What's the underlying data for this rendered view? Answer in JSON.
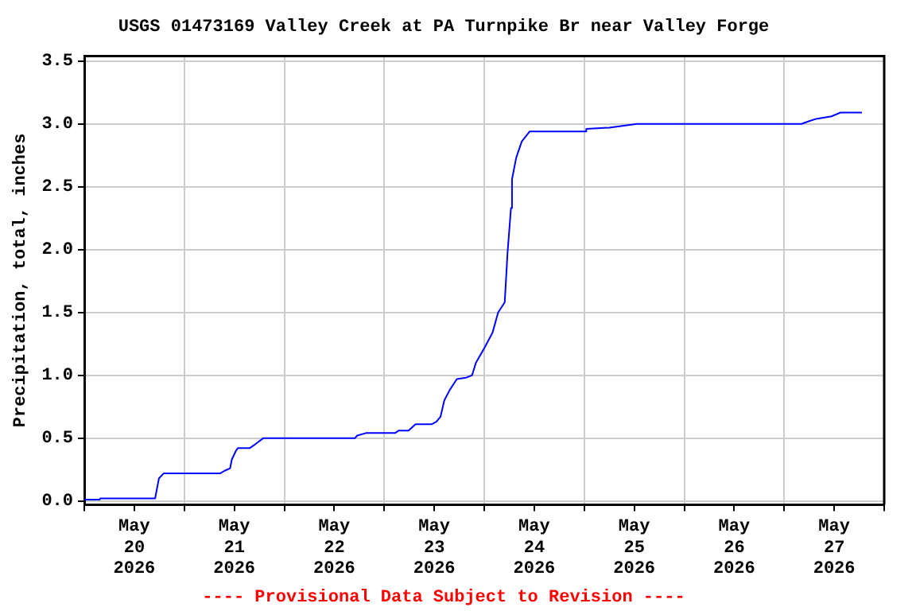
{
  "chart_data": {
    "type": "line",
    "title": "USGS 01473169 Valley Creek at PA Turnpike Br near Valley Forge",
    "ylabel": "Precipitation, total, inches",
    "annotations": [
      "---- Provisional Data Subject to Revision ----"
    ],
    "x": [
      "2026-05-20T00:00",
      "2026-05-20T03:40",
      "2026-05-20T03:50",
      "2026-05-20T17:00",
      "2026-05-20T17:55",
      "2026-05-20T19:05",
      "2026-05-21T08:40",
      "2026-05-21T09:40",
      "2026-05-21T11:00",
      "2026-05-21T11:25",
      "2026-05-21T12:25",
      "2026-05-21T12:50",
      "2026-05-21T15:40",
      "2026-05-21T17:00",
      "2026-05-21T19:00",
      "2026-05-22T17:00",
      "2026-05-22T17:30",
      "2026-05-22T19:35",
      "2026-05-23T02:35",
      "2026-05-23T03:30",
      "2026-05-23T05:50",
      "2026-05-23T07:30",
      "2026-05-23T11:20",
      "2026-05-23T12:30",
      "2026-05-23T13:30",
      "2026-05-23T14:25",
      "2026-05-23T15:40",
      "2026-05-23T17:25",
      "2026-05-23T19:35",
      "2026-05-23T21:05",
      "2026-05-23T22:00",
      "2026-05-24T00:05",
      "2026-05-24T02:00",
      "2026-05-24T03:20",
      "2026-05-24T04:55",
      "2026-05-24T05:35",
      "2026-05-24T06:25",
      "2026-05-24T06:40",
      "2026-05-24T07:40",
      "2026-05-24T09:00",
      "2026-05-24T10:55",
      "2026-05-25T00:20",
      "2026-05-25T00:30",
      "2026-05-25T06:00",
      "2026-05-25T12:40",
      "2026-05-27T04:10",
      "2026-05-27T05:50",
      "2026-05-27T07:40",
      "2026-05-27T11:20",
      "2026-05-27T13:30",
      "2026-05-27T18:40"
    ],
    "series": [
      {
        "color": "#0000ff",
        "values": [
          0.01,
          0.01,
          0.02,
          0.02,
          0.18,
          0.22,
          0.22,
          0.24,
          0.26,
          0.33,
          0.4,
          0.42,
          0.42,
          0.45,
          0.5,
          0.5,
          0.52,
          0.54,
          0.54,
          0.56,
          0.56,
          0.61,
          0.61,
          0.63,
          0.67,
          0.8,
          0.88,
          0.97,
          0.98,
          1.0,
          1.1,
          1.22,
          1.34,
          1.5,
          1.58,
          1.97,
          2.33,
          2.56,
          2.73,
          2.86,
          2.94,
          2.94,
          2.96,
          2.97,
          3.0,
          3.0,
          3.02,
          3.04,
          3.06,
          3.09,
          3.09
        ]
      }
    ],
    "xlim": [
      "2026-05-20T00:00",
      "2026-05-28T00:00"
    ],
    "xticks": [
      {
        "value": "2026-05-20T00:00",
        "label": null
      },
      {
        "value": "2026-05-20T12:00",
        "label": "May\n20\n2026"
      },
      {
        "value": "2026-05-21T00:00",
        "label": null
      },
      {
        "value": "2026-05-21T12:00",
        "label": "May\n21\n2026"
      },
      {
        "value": "2026-05-22T00:00",
        "label": null
      },
      {
        "value": "2026-05-22T12:00",
        "label": "May\n22\n2026"
      },
      {
        "value": "2026-05-23T00:00",
        "label": null
      },
      {
        "value": "2026-05-23T12:00",
        "label": "May\n23\n2026"
      },
      {
        "value": "2026-05-24T00:00",
        "label": null
      },
      {
        "value": "2026-05-24T12:00",
        "label": "May\n24\n2026"
      },
      {
        "value": "2026-05-25T00:00",
        "label": null
      },
      {
        "value": "2026-05-25T12:00",
        "label": "May\n25\n2026"
      },
      {
        "value": "2026-05-26T00:00",
        "label": null
      },
      {
        "value": "2026-05-26T12:00",
        "label": "May\n26\n2026"
      },
      {
        "value": "2026-05-27T00:00",
        "label": null
      },
      {
        "value": "2026-05-27T12:00",
        "label": "May\n27\n2026"
      },
      {
        "value": "2026-05-28T00:00",
        "label": null
      }
    ],
    "ylim": [
      -0.03,
      3.54
    ],
    "yticks": [
      {
        "value": 0,
        "label": "0.0"
      },
      {
        "value": 0.5,
        "label": "0.5"
      },
      {
        "value": 1,
        "label": "1.0"
      },
      {
        "value": 1.5,
        "label": "1.5"
      },
      {
        "value": 2,
        "label": "2.0"
      },
      {
        "value": 2.5,
        "label": "2.5"
      },
      {
        "value": 3,
        "label": "3.0"
      },
      3.5
    ],
    "grid": true,
    "line_style": "solid",
    "marker": "none",
    "legend": false
  }
}
